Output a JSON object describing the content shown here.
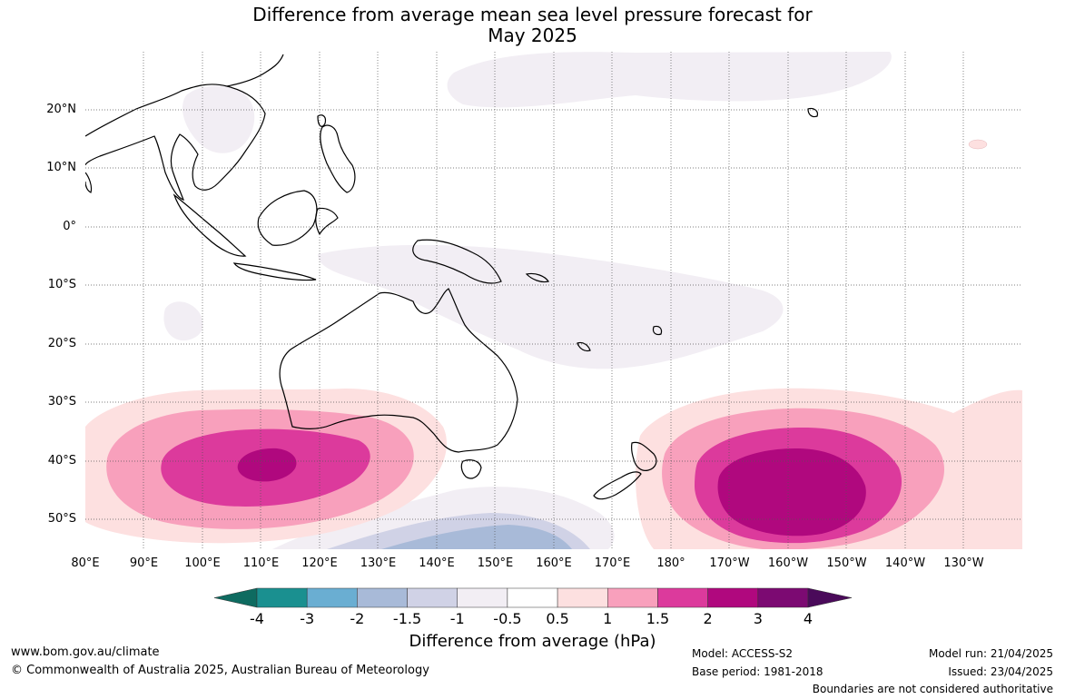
{
  "title_line1": "Difference from average mean sea level pressure forecast for",
  "title_line2": "May 2025",
  "lat_labels": [
    "20°N",
    "10°N",
    "0°",
    "10°S",
    "20°S",
    "30°S",
    "40°S",
    "50°S"
  ],
  "lon_labels": [
    "80°E",
    "90°E",
    "100°E",
    "110°E",
    "120°E",
    "130°E",
    "140°E",
    "150°E",
    "160°E",
    "170°E",
    "180°",
    "170°W",
    "160°W",
    "150°W",
    "140°W",
    "130°W"
  ],
  "colorbar": {
    "title": "Difference from average (hPa)",
    "tick_labels": [
      "-4",
      "-3",
      "-2",
      "-1.5",
      "-1",
      "-0.5",
      "0.5",
      "1",
      "1.5",
      "2",
      "3",
      "4"
    ],
    "colors": [
      "#0e6b60",
      "#1a9090",
      "#6aaed2",
      "#a8bad8",
      "#d0d2e6",
      "#f2eef4",
      "#ffffff",
      "#fde0e0",
      "#f8a0bc",
      "#dc3a9c",
      "#b0087e",
      "#7c0a72",
      "#4a0a5a"
    ]
  },
  "footer": {
    "url": "www.bom.gov.au/climate",
    "copyright": "© Commonwealth of Australia 2025, Australian Bureau of Meteorology",
    "model": "Model: ACCESS-S2",
    "base_period": "Base period: 1981-2018",
    "model_run": "Model run: 21/04/2025",
    "issued": "Issued: 23/04/2025",
    "disclaimer": "Boundaries are not considered authoritative"
  }
}
